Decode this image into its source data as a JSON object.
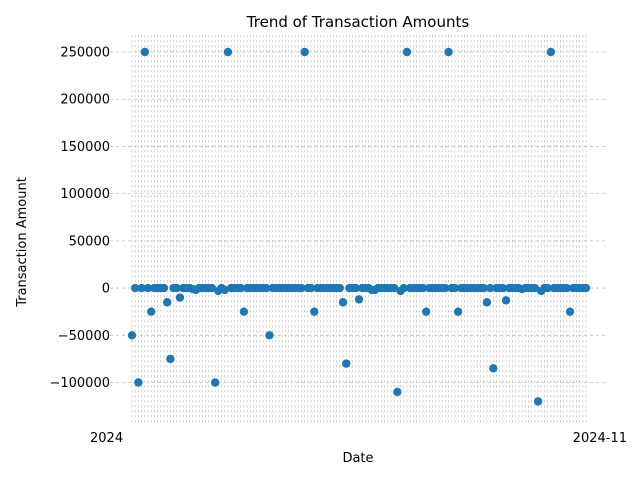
{
  "chart_data": {
    "type": "scatter",
    "title": "Trend of Transaction Amounts",
    "xlabel": "Date",
    "ylabel": "Transaction Amount",
    "ylim": [
      -145000,
      268000
    ],
    "yticks": [
      -100000,
      -50000,
      0,
      50000,
      100000,
      150000,
      200000,
      250000
    ],
    "ytick_labels": [
      "−100000",
      "−50000",
      "0",
      "50000",
      "100000",
      "150000",
      "200000",
      "250000"
    ],
    "grid": true,
    "marker_color": "#1f77b4",
    "x_tick_labels_visible": [
      "2024",
      "2024-11"
    ],
    "series": [
      {
        "values": [
          -50000,
          0,
          -100000,
          0,
          250000,
          0,
          -25000,
          0,
          0,
          0,
          0,
          -15000,
          -75000,
          0,
          0,
          -10000,
          0,
          0,
          0,
          -1000,
          -2000,
          0,
          0,
          0,
          0,
          0,
          -100000,
          -3000,
          0,
          -2000,
          250000,
          0,
          0,
          0,
          0,
          -25000,
          0,
          0,
          0,
          0,
          0,
          0,
          0,
          -50000,
          0,
          0,
          0,
          0,
          0,
          0,
          0,
          0,
          0,
          0,
          250000,
          0,
          0,
          -25000,
          0,
          0,
          0,
          0,
          0,
          0,
          0,
          0,
          -15000,
          -80000,
          0,
          0,
          0,
          -12000,
          0,
          0,
          0,
          -2000,
          -2000,
          0,
          0,
          0,
          0,
          0,
          0,
          -110000,
          -3000,
          0,
          250000,
          0,
          0,
          0,
          0,
          0,
          -25000,
          0,
          0,
          0,
          0,
          0,
          0,
          250000,
          0,
          0,
          -25000,
          0,
          0,
          0,
          0,
          0,
          0,
          0,
          0,
          -15000,
          0,
          -85000,
          0,
          0,
          0,
          -13000,
          0,
          0,
          0,
          0,
          -1000,
          0,
          0,
          0,
          0,
          -120000,
          -3000,
          0,
          0,
          250000,
          0,
          0,
          0,
          0,
          0,
          -25000,
          0,
          0,
          0,
          0,
          0
        ]
      }
    ]
  }
}
